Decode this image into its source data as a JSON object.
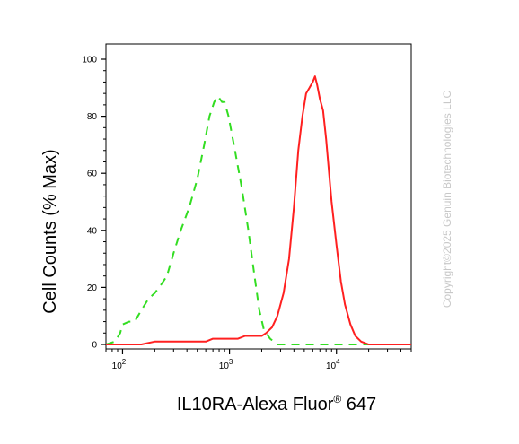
{
  "chart_data": {
    "type": "line",
    "xlabel": "IL10RA-Alexa Fluor",
    "xlabel_superscript": "®",
    "xlabel_suffix": " 647",
    "ylabel": "Cell Counts (% Max)",
    "xscale": "log",
    "xlim": [
      70,
      50000
    ],
    "ylim": [
      0,
      100
    ],
    "x_major_ticks": [
      100,
      1000,
      10000
    ],
    "x_tick_labels": [
      {
        "base": "10",
        "exp": "2"
      },
      {
        "base": "10",
        "exp": "3"
      },
      {
        "base": "10",
        "exp": "4"
      }
    ],
    "y_ticks": [
      0,
      20,
      40,
      60,
      80,
      100
    ],
    "y_tick_labels": [
      "0",
      "20",
      "40",
      "60",
      "80",
      "100"
    ],
    "grid": false,
    "legend": "none",
    "series": [
      {
        "color": "#33dd22",
        "style": "dashed",
        "points": [
          [
            70,
            0
          ],
          [
            85,
            1
          ],
          [
            95,
            4
          ],
          [
            100,
            7
          ],
          [
            115,
            8
          ],
          [
            130,
            8
          ],
          [
            150,
            12
          ],
          [
            175,
            16
          ],
          [
            200,
            18
          ],
          [
            230,
            21
          ],
          [
            260,
            24
          ],
          [
            300,
            32
          ],
          [
            350,
            40
          ],
          [
            420,
            48
          ],
          [
            500,
            58
          ],
          [
            580,
            70
          ],
          [
            650,
            80
          ],
          [
            720,
            85
          ],
          [
            780,
            87
          ],
          [
            850,
            85
          ],
          [
            900,
            85
          ],
          [
            980,
            80
          ],
          [
            1100,
            70
          ],
          [
            1300,
            55
          ],
          [
            1500,
            40
          ],
          [
            1700,
            25
          ],
          [
            1900,
            12
          ],
          [
            2100,
            5
          ],
          [
            2400,
            2
          ],
          [
            2800,
            0
          ],
          [
            3500,
            0
          ],
          [
            5000,
            0
          ],
          [
            10000,
            0
          ],
          [
            20000,
            0
          ],
          [
            50000,
            0
          ]
        ]
      },
      {
        "color": "#ff2020",
        "style": "solid",
        "points": [
          [
            70,
            0
          ],
          [
            100,
            0
          ],
          [
            150,
            0
          ],
          [
            200,
            1
          ],
          [
            250,
            1
          ],
          [
            300,
            1
          ],
          [
            350,
            1
          ],
          [
            400,
            1
          ],
          [
            500,
            1
          ],
          [
            600,
            1
          ],
          [
            700,
            2
          ],
          [
            800,
            2
          ],
          [
            900,
            2
          ],
          [
            1000,
            2
          ],
          [
            1200,
            2
          ],
          [
            1400,
            3
          ],
          [
            1600,
            3
          ],
          [
            1800,
            3
          ],
          [
            2000,
            3
          ],
          [
            2200,
            4
          ],
          [
            2500,
            6
          ],
          [
            2800,
            10
          ],
          [
            3200,
            18
          ],
          [
            3600,
            30
          ],
          [
            4000,
            48
          ],
          [
            4400,
            68
          ],
          [
            4800,
            80
          ],
          [
            5200,
            88
          ],
          [
            5600,
            90
          ],
          [
            6000,
            92
          ],
          [
            6300,
            94
          ],
          [
            6600,
            91
          ],
          [
            7000,
            86
          ],
          [
            7500,
            82
          ],
          [
            8000,
            72
          ],
          [
            9000,
            50
          ],
          [
            10000,
            35
          ],
          [
            11000,
            22
          ],
          [
            12000,
            14
          ],
          [
            13500,
            7
          ],
          [
            15000,
            3
          ],
          [
            17000,
            1
          ],
          [
            20000,
            0
          ],
          [
            30000,
            0
          ],
          [
            50000,
            0
          ]
        ]
      }
    ]
  },
  "watermark": "Copyright©2025 Genuin Biotechnologies LLC"
}
